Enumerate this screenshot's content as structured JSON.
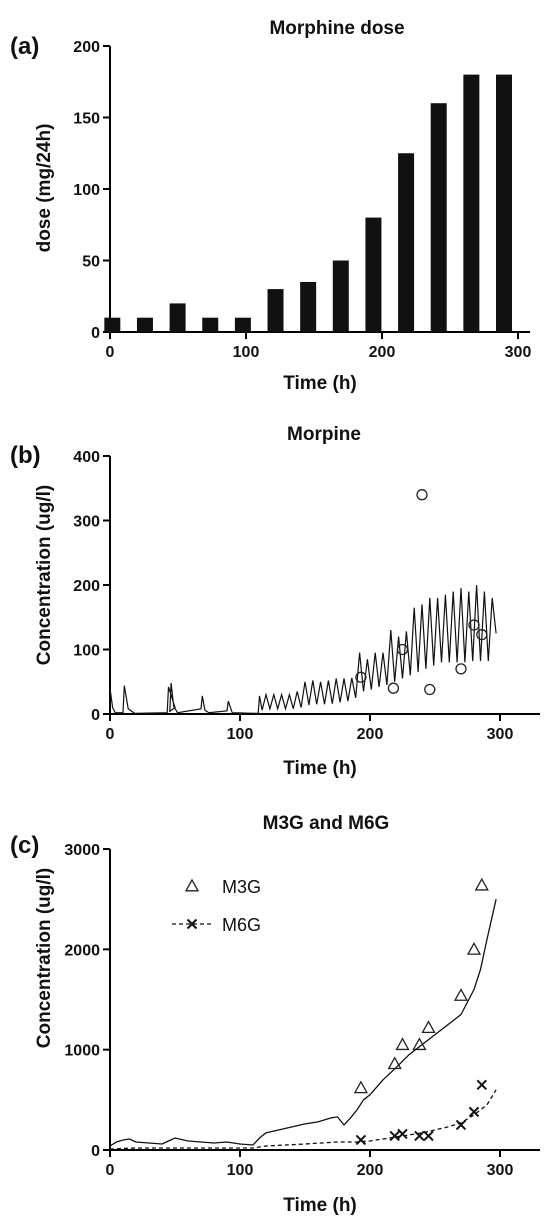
{
  "chart_data": [
    {
      "panel": "(a)",
      "type": "bar",
      "title": "Morphine dose",
      "xlabel": "Time (h)",
      "ylabel": "dose (mg/24h)",
      "xlim": [
        0,
        300
      ],
      "ylim": [
        0,
        200
      ],
      "xticks": [
        0,
        100,
        200,
        300
      ],
      "yticks": [
        0,
        50,
        100,
        150,
        200
      ],
      "bar_color": "#111111",
      "x": [
        12,
        36,
        60,
        84,
        108,
        132,
        156,
        180,
        204,
        228,
        252,
        276,
        300
      ],
      "values": [
        10,
        10,
        20,
        10,
        10,
        30,
        35,
        50,
        80,
        125,
        160,
        180,
        180
      ]
    },
    {
      "panel": "(b)",
      "type": "line",
      "title": "Morpine",
      "xlabel": "Time (h)",
      "ylabel": "Concentration (ug/l)",
      "xlim": [
        0,
        310
      ],
      "ylim": [
        0,
        400
      ],
      "xticks": [
        0,
        100,
        200,
        300
      ],
      "yticks": [
        0,
        100,
        200,
        300,
        400
      ],
      "series": [
        {
          "style": "line",
          "x": [
            0,
            2,
            4,
            10,
            11,
            14,
            19,
            44,
            45,
            50,
            46,
            47,
            49,
            52,
            70,
            71,
            73,
            76,
            90,
            91,
            94,
            114,
            115,
            117,
            120,
            123,
            126,
            129,
            132,
            135,
            138,
            141,
            144,
            147,
            150,
            153,
            156,
            159,
            162,
            165,
            168,
            171,
            174,
            177,
            180,
            183,
            186,
            189,
            192,
            195,
            198,
            201,
            204,
            207,
            210,
            213,
            216,
            219,
            222,
            225,
            228,
            231,
            234,
            237,
            240,
            243,
            246,
            249,
            252,
            255,
            258,
            261,
            264,
            267,
            270,
            273,
            276,
            279,
            282,
            285,
            288,
            291,
            294,
            297
          ],
          "y": [
            40,
            10,
            2,
            2,
            44,
            8,
            1,
            2,
            42,
            10,
            4,
            48,
            12,
            2,
            8,
            28,
            6,
            2,
            5,
            20,
            2,
            1,
            28,
            6,
            30,
            8,
            30,
            8,
            30,
            8,
            30,
            8,
            35,
            10,
            50,
            14,
            52,
            15,
            50,
            15,
            52,
            16,
            55,
            18,
            55,
            20,
            56,
            25,
            95,
            35,
            85,
            38,
            95,
            42,
            95,
            45,
            130,
            50,
            120,
            55,
            128,
            60,
            165,
            65,
            170,
            70,
            180,
            75,
            180,
            80,
            185,
            80,
            190,
            80,
            195,
            80,
            190,
            82,
            200,
            82,
            190,
            82,
            180,
            125
          ]
        },
        {
          "style": "circle",
          "x": [
            193,
            218,
            225,
            240,
            246,
            270,
            280,
            286
          ],
          "y": [
            57,
            40,
            100,
            340,
            38,
            70,
            138,
            123
          ]
        }
      ]
    },
    {
      "panel": "(c)",
      "type": "line",
      "title": "M3G and M6G",
      "xlabel": "Time (h)",
      "ylabel": "Concentration (ug/l)",
      "xlim": [
        0,
        310
      ],
      "ylim": [
        0,
        3000
      ],
      "xticks": [
        0,
        100,
        200,
        300
      ],
      "yticks": [
        0,
        1000,
        2000,
        3000
      ],
      "legend": [
        {
          "name": "M3G",
          "marker": "triangle",
          "line": "none"
        },
        {
          "name": "M6G",
          "marker": "x",
          "line": "dashed"
        }
      ],
      "series": [
        {
          "name": "M3G",
          "style": "line",
          "x": [
            0,
            5,
            10,
            15,
            20,
            30,
            40,
            45,
            50,
            60,
            70,
            80,
            90,
            100,
            110,
            115,
            120,
            130,
            140,
            150,
            160,
            170,
            175,
            180,
            185,
            190,
            195,
            200,
            210,
            220,
            230,
            240,
            250,
            260,
            270,
            280,
            285,
            290,
            297
          ],
          "y": [
            40,
            80,
            100,
            110,
            80,
            70,
            60,
            90,
            120,
            90,
            80,
            70,
            80,
            60,
            50,
            120,
            170,
            200,
            230,
            260,
            280,
            320,
            330,
            250,
            320,
            400,
            500,
            550,
            700,
            820,
            950,
            1050,
            1150,
            1250,
            1350,
            1600,
            1800,
            2100,
            2500
          ]
        },
        {
          "name": "M6G",
          "style": "dashed",
          "x": [
            0,
            20,
            50,
            80,
            110,
            120,
            150,
            175,
            190,
            200,
            220,
            240,
            260,
            270,
            280,
            290,
            297
          ],
          "y": [
            10,
            20,
            20,
            20,
            20,
            40,
            60,
            80,
            80,
            90,
            130,
            170,
            230,
            270,
            350,
            450,
            600
          ]
        },
        {
          "name": "M3G",
          "style": "triangle",
          "x": [
            193,
            219,
            225,
            238,
            245,
            270,
            280,
            286
          ],
          "y": [
            620,
            860,
            1050,
            1050,
            1220,
            1540,
            2000,
            2640
          ]
        },
        {
          "name": "M6G",
          "style": "x",
          "x": [
            193,
            219,
            225,
            238,
            245,
            270,
            280,
            286
          ],
          "y": [
            100,
            140,
            160,
            140,
            140,
            250,
            380,
            650
          ]
        }
      ]
    }
  ]
}
